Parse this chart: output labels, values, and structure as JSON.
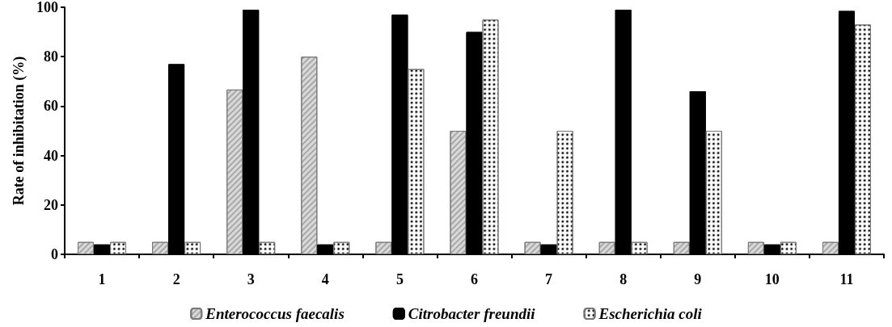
{
  "chart_data": {
    "type": "bar",
    "ylabel": "Rate of inhibitation (%)",
    "categories": [
      "1",
      "2",
      "3",
      "4",
      "5",
      "6",
      "7",
      "8",
      "9",
      "10",
      "11"
    ],
    "series": [
      {
        "name": "Enterococcus faecalis",
        "color": "#d9d9d9",
        "values": [
          5,
          5,
          66.7,
          80,
          5,
          50,
          5,
          5,
          5,
          5,
          5
        ]
      },
      {
        "name": "Citrobacter freundii",
        "color": "#000000",
        "values": [
          4,
          77,
          99,
          4,
          97,
          90,
          4,
          99,
          66,
          4,
          98.5
        ]
      },
      {
        "name": "Escherichia coli",
        "color": "#ffffff",
        "values": [
          5,
          5,
          5,
          5,
          75,
          95,
          50,
          5,
          50,
          5,
          93
        ]
      }
    ],
    "ylim": [
      0,
      100
    ],
    "yticks": [
      0,
      20,
      40,
      60,
      80,
      100
    ],
    "grid": false,
    "legend": "bottom"
  }
}
